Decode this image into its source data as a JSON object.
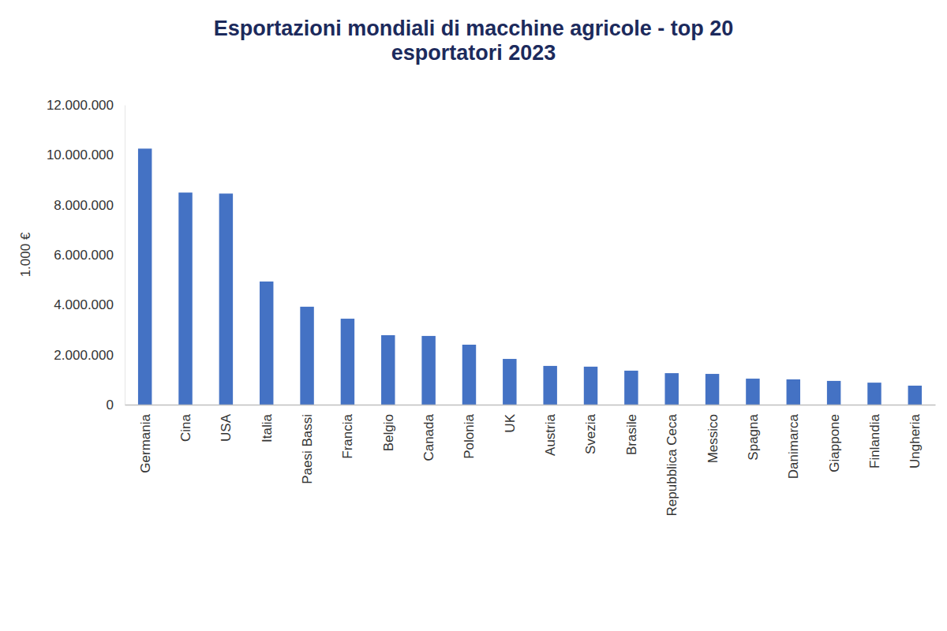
{
  "chart_data": {
    "type": "bar",
    "title": "Esportazioni mondiali di macchine agricole - top 20 esportatori 2023",
    "y_label": "1.000 €",
    "categories": [
      "Germania",
      "Cina",
      "USA",
      "Italia",
      "Paesi Bassi",
      "Francia",
      "Belgio",
      "Canada",
      "Polonia",
      "UK",
      "Austria",
      "Svezia",
      "Brasile",
      "Repubblica Ceca",
      "Messico",
      "Spagna",
      "Danimarca",
      "Giappone",
      "Finlandia",
      "Ungheria"
    ],
    "values": [
      10250000,
      8490000,
      8450000,
      4930000,
      3920000,
      3440000,
      2780000,
      2750000,
      2400000,
      1830000,
      1550000,
      1520000,
      1360000,
      1260000,
      1230000,
      1040000,
      1010000,
      950000,
      880000,
      760000
    ],
    "color": "#4472c4",
    "ylim": [
      0,
      12000000
    ],
    "yticks": [
      0,
      {
        "value": 2000000,
        "label": "2.000.000"
      },
      {
        "value": 4000000,
        "label": "4.000.000"
      },
      {
        "value": 6000000,
        "label": "6.000.000"
      },
      {
        "value": 8000000,
        "label": "8.000.000"
      },
      {
        "value": 10000000,
        "label": "10.000.000"
      },
      {
        "value": 12000000,
        "label": "12.000.000"
      }
    ],
    "grid": false
  }
}
